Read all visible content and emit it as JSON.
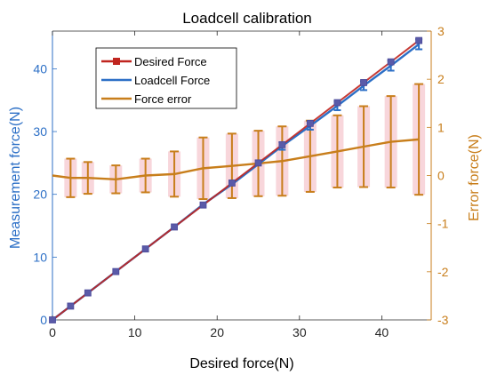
{
  "chart_data": {
    "type": "line",
    "title": "Loadcell calibration",
    "xlabel": "Desired force(N)",
    "ylabel_left": "Measurement force(N)",
    "ylabel_right": "Error force(N)",
    "xlim": [
      0,
      46
    ],
    "ylim_left": [
      0,
      46
    ],
    "ylim_right": [
      -3,
      3
    ],
    "xticks": [
      "0",
      "10",
      "20",
      "30",
      "40"
    ],
    "yticks_left": [
      "0",
      "10",
      "20",
      "30",
      "40"
    ],
    "yticks_right": [
      "-3",
      "-2",
      "-1",
      "0",
      "1",
      "2",
      "3"
    ],
    "grid": false,
    "legend_position": "top-left",
    "x": [
      0,
      2.2,
      4.3,
      7.7,
      11.3,
      14.8,
      18.3,
      21.8,
      25.0,
      27.9,
      31.3,
      34.6,
      37.8,
      41.1,
      44.5
    ],
    "series": [
      {
        "name": "Desired Force",
        "axis": "left",
        "color": "#c0251f",
        "marker": "square",
        "values": [
          0,
          2.2,
          4.3,
          7.7,
          11.3,
          14.8,
          18.3,
          21.8,
          25.0,
          27.9,
          31.3,
          34.6,
          37.8,
          41.1,
          44.5
        ]
      },
      {
        "name": "Loadcell Force",
        "axis": "left",
        "color": "#2c6fc6",
        "marker": "none",
        "values": [
          0,
          2.2,
          4.3,
          7.7,
          11.3,
          14.8,
          18.4,
          21.6,
          24.8,
          27.7,
          30.9,
          34.1,
          37.3,
          40.5,
          43.9
        ],
        "error": [
          0,
          0,
          0,
          0,
          0,
          0,
          0,
          0,
          0,
          0.6,
          0.6,
          0.7,
          0.7,
          0.8,
          0.8
        ]
      },
      {
        "name": "Force error",
        "axis": "right",
        "color": "#c87e1b",
        "marker": "none",
        "values": [
          -0.0,
          -0.05,
          -0.05,
          -0.08,
          0.0,
          0.03,
          0.15,
          0.2,
          0.25,
          0.3,
          0.4,
          0.5,
          0.6,
          0.7,
          0.75
        ],
        "error": [
          0.0,
          0.4,
          0.33,
          0.29,
          0.35,
          0.47,
          0.64,
          0.67,
          0.68,
          0.72,
          0.74,
          0.75,
          0.84,
          0.95,
          1.15
        ]
      }
    ]
  },
  "colors": {
    "left_axis": "#2c6fc6",
    "right_axis": "#c87e1b",
    "error_shadow": "#f5c8cf"
  }
}
